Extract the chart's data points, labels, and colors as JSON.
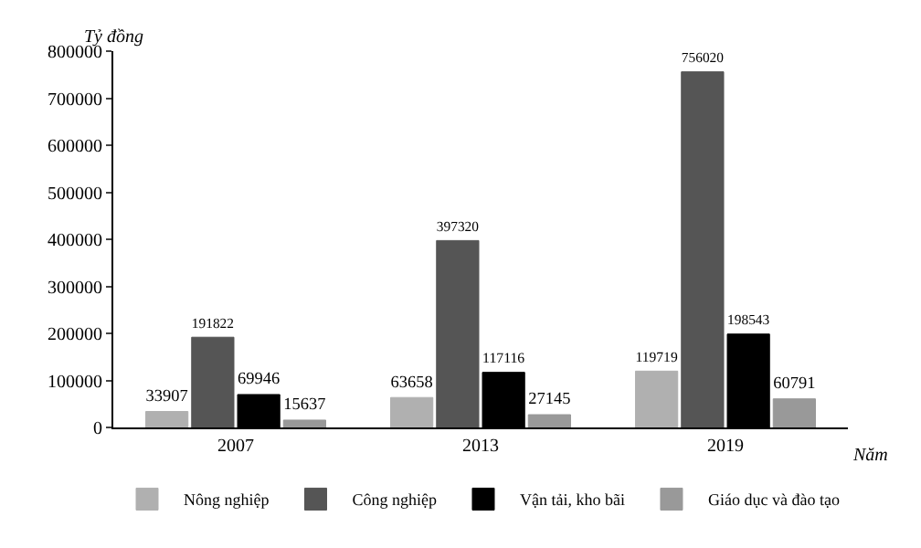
{
  "chart_data": {
    "type": "bar",
    "xlabel": "Năm",
    "ylabel": "Tỷ đồng",
    "categories": [
      "2007",
      "2013",
      "2019"
    ],
    "series": [
      {
        "name": "Nông nghiệp",
        "color": "#b0b0b0",
        "values": [
          33907,
          63658,
          119719
        ]
      },
      {
        "name": "Công nghiệp",
        "color": "#555555",
        "values": [
          191822,
          397320,
          756020
        ]
      },
      {
        "name": "Vận tải, kho bãi",
        "color": "#000000",
        "values": [
          69946,
          117116,
          198543
        ]
      },
      {
        "name": "Giáo dục và đào tạo",
        "color": "#999999",
        "values": [
          15637,
          27145,
          60791
        ]
      }
    ],
    "ylim": [
      0,
      800000
    ],
    "yticks": [
      0,
      100000,
      200000,
      300000,
      400000,
      500000,
      600000,
      700000,
      800000
    ],
    "data_labels": true,
    "legend": "bottom"
  }
}
